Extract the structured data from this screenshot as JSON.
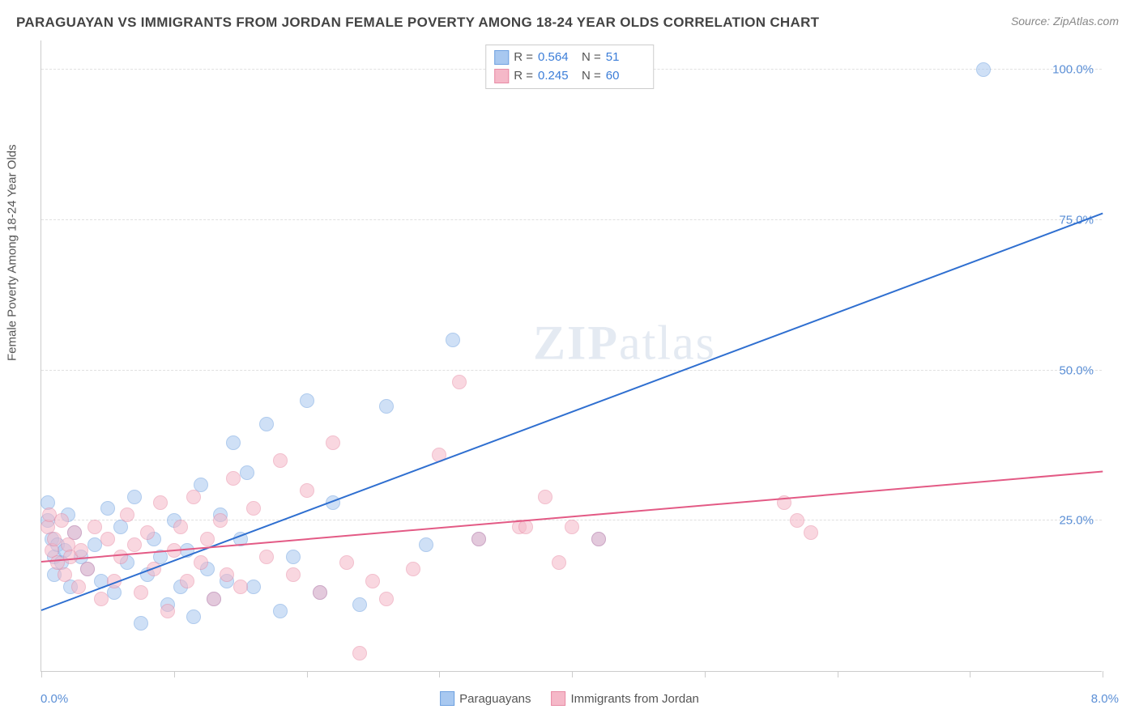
{
  "title": "PARAGUAYAN VS IMMIGRANTS FROM JORDAN FEMALE POVERTY AMONG 18-24 YEAR OLDS CORRELATION CHART",
  "source": "Source: ZipAtlas.com",
  "watermark_a": "ZIP",
  "watermark_b": "atlas",
  "y_axis_label": "Female Poverty Among 18-24 Year Olds",
  "chart": {
    "type": "scatter",
    "background_color": "#ffffff",
    "grid_color": "#e0e0e0",
    "axis_color": "#cccccc",
    "xlim": [
      0,
      8
    ],
    "ylim": [
      0,
      105
    ],
    "x_ticks": [
      0,
      1,
      2,
      3,
      4,
      5,
      6,
      7,
      8
    ],
    "x_tick_labels_shown": {
      "0": "0.0%",
      "8": "8.0%"
    },
    "y_ticks": [
      25,
      50,
      75,
      100
    ],
    "y_tick_labels": [
      "25.0%",
      "50.0%",
      "75.0%",
      "100.0%"
    ],
    "label_fontsize": 15,
    "title_fontsize": 17,
    "tick_color": "#5b8fd6",
    "marker_radius": 9,
    "marker_opacity": 0.55,
    "line_width": 2
  },
  "series": [
    {
      "name": "Paraguayans",
      "fill": "#a8c8f0",
      "stroke": "#6fa1e0",
      "line_color": "#2f6fd0",
      "R": "0.564",
      "N": "51",
      "regression": {
        "x1": 0,
        "y1": 10,
        "x2": 8,
        "y2": 76
      },
      "points": [
        [
          0.05,
          28
        ],
        [
          0.05,
          25
        ],
        [
          0.08,
          22
        ],
        [
          0.1,
          19
        ],
        [
          0.1,
          16
        ],
        [
          0.12,
          21
        ],
        [
          0.15,
          18
        ],
        [
          0.18,
          20
        ],
        [
          0.2,
          26
        ],
        [
          0.22,
          14
        ],
        [
          0.25,
          23
        ],
        [
          0.3,
          19
        ],
        [
          0.35,
          17
        ],
        [
          0.4,
          21
        ],
        [
          0.45,
          15
        ],
        [
          0.5,
          27
        ],
        [
          0.55,
          13
        ],
        [
          0.6,
          24
        ],
        [
          0.65,
          18
        ],
        [
          0.7,
          29
        ],
        [
          0.75,
          8
        ],
        [
          0.8,
          16
        ],
        [
          0.85,
          22
        ],
        [
          0.9,
          19
        ],
        [
          0.95,
          11
        ],
        [
          1.0,
          25
        ],
        [
          1.05,
          14
        ],
        [
          1.1,
          20
        ],
        [
          1.15,
          9
        ],
        [
          1.2,
          31
        ],
        [
          1.25,
          17
        ],
        [
          1.3,
          12
        ],
        [
          1.35,
          26
        ],
        [
          1.4,
          15
        ],
        [
          1.45,
          38
        ],
        [
          1.5,
          22
        ],
        [
          1.55,
          33
        ],
        [
          1.6,
          14
        ],
        [
          1.7,
          41
        ],
        [
          1.8,
          10
        ],
        [
          1.9,
          19
        ],
        [
          2.0,
          45
        ],
        [
          2.1,
          13
        ],
        [
          2.2,
          28
        ],
        [
          2.4,
          11
        ],
        [
          2.6,
          44
        ],
        [
          2.9,
          21
        ],
        [
          3.1,
          55
        ],
        [
          3.3,
          22
        ],
        [
          4.2,
          22
        ],
        [
          7.1,
          100
        ]
      ]
    },
    {
      "name": "Immigrants from Jordan",
      "fill": "#f5b8c8",
      "stroke": "#e88ba5",
      "line_color": "#e35a85",
      "R": "0.245",
      "N": "60",
      "regression": {
        "x1": 0,
        "y1": 18,
        "x2": 8,
        "y2": 33
      },
      "points": [
        [
          0.05,
          24
        ],
        [
          0.06,
          26
        ],
        [
          0.08,
          20
        ],
        [
          0.1,
          22
        ],
        [
          0.12,
          18
        ],
        [
          0.15,
          25
        ],
        [
          0.18,
          16
        ],
        [
          0.2,
          21
        ],
        [
          0.22,
          19
        ],
        [
          0.25,
          23
        ],
        [
          0.28,
          14
        ],
        [
          0.3,
          20
        ],
        [
          0.35,
          17
        ],
        [
          0.4,
          24
        ],
        [
          0.45,
          12
        ],
        [
          0.5,
          22
        ],
        [
          0.55,
          15
        ],
        [
          0.6,
          19
        ],
        [
          0.65,
          26
        ],
        [
          0.7,
          21
        ],
        [
          0.75,
          13
        ],
        [
          0.8,
          23
        ],
        [
          0.85,
          17
        ],
        [
          0.9,
          28
        ],
        [
          0.95,
          10
        ],
        [
          1.0,
          20
        ],
        [
          1.05,
          24
        ],
        [
          1.1,
          15
        ],
        [
          1.15,
          29
        ],
        [
          1.2,
          18
        ],
        [
          1.25,
          22
        ],
        [
          1.3,
          12
        ],
        [
          1.35,
          25
        ],
        [
          1.4,
          16
        ],
        [
          1.45,
          32
        ],
        [
          1.5,
          14
        ],
        [
          1.6,
          27
        ],
        [
          1.7,
          19
        ],
        [
          1.8,
          35
        ],
        [
          1.9,
          16
        ],
        [
          2.0,
          30
        ],
        [
          2.1,
          13
        ],
        [
          2.2,
          38
        ],
        [
          2.3,
          18
        ],
        [
          2.4,
          3
        ],
        [
          2.5,
          15
        ],
        [
          2.6,
          12
        ],
        [
          2.8,
          17
        ],
        [
          3.0,
          36
        ],
        [
          3.15,
          48
        ],
        [
          3.3,
          22
        ],
        [
          3.6,
          24
        ],
        [
          3.65,
          24
        ],
        [
          3.8,
          29
        ],
        [
          3.9,
          18
        ],
        [
          4.0,
          24
        ],
        [
          4.2,
          22
        ],
        [
          5.6,
          28
        ],
        [
          5.7,
          25
        ],
        [
          5.8,
          23
        ]
      ]
    }
  ],
  "bottom_legend": [
    {
      "label": "Paraguayans"
    },
    {
      "label": "Immigrants from Jordan"
    }
  ]
}
